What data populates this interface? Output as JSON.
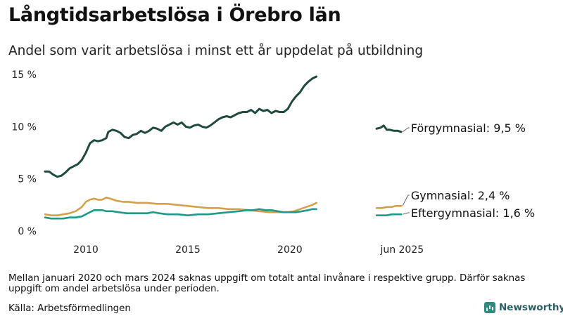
{
  "title": "Långtidsarbetslösa i Örebro län",
  "subtitle": "Andel som varit arbetslösa i minst ett år uppdelat på utbildning",
  "note": "Mellan januari 2020 och mars 2024 saknas uppgift om totalt antal invånare i respektive grupp. Därför saknas uppgift om andel arbetslösa under perioden.",
  "source": "Källa: Arbetsförmedlingen",
  "brand": "Newsworthy",
  "colors": {
    "forgymnasial": "#1f4a3f",
    "gymnasial": "#d4a04a",
    "eftergymnasial": "#1e9a88",
    "axis_text": "#222222",
    "label_line": "#666666"
  },
  "chart_data": {
    "type": "line",
    "title": "Långtidsarbetslösa i Örebro län",
    "subtitle": "Andel som varit arbetslösa i minst ett år uppdelat på utbildning",
    "xlabel": "",
    "ylabel": "",
    "ylim": [
      0,
      15
    ],
    "yticks": [
      0,
      5,
      10,
      15
    ],
    "ytick_labels": [
      "0 %",
      "5 %",
      "10 %",
      "15 %"
    ],
    "xlim": [
      2008.0,
      2025.8
    ],
    "xticks": [
      2010,
      2015,
      2020,
      2025.5
    ],
    "xtick_labels": [
      "2010",
      "2015",
      "2020",
      "jun 2025"
    ],
    "grid": false,
    "legend": "end-labels",
    "series": [
      {
        "name": "Förgymnasial",
        "end_label": "Förgymnasial: 9,5 %",
        "color_key": "forgymnasial",
        "segments": [
          [
            [
              2008.0,
              5.7
            ],
            [
              2008.2,
              5.7
            ],
            [
              2008.4,
              5.4
            ],
            [
              2008.6,
              5.2
            ],
            [
              2008.8,
              5.3
            ],
            [
              2009.0,
              5.6
            ],
            [
              2009.2,
              6.0
            ],
            [
              2009.4,
              6.2
            ],
            [
              2009.6,
              6.4
            ],
            [
              2009.8,
              6.8
            ],
            [
              2010.0,
              7.5
            ],
            [
              2010.2,
              8.4
            ],
            [
              2010.4,
              8.7
            ],
            [
              2010.6,
              8.6
            ],
            [
              2010.8,
              8.7
            ],
            [
              2011.0,
              8.9
            ],
            [
              2011.1,
              9.5
            ],
            [
              2011.3,
              9.7
            ],
            [
              2011.5,
              9.6
            ],
            [
              2011.7,
              9.4
            ],
            [
              2011.9,
              9.0
            ],
            [
              2012.1,
              8.9
            ],
            [
              2012.3,
              9.2
            ],
            [
              2012.5,
              9.3
            ],
            [
              2012.7,
              9.6
            ],
            [
              2012.9,
              9.4
            ],
            [
              2013.1,
              9.6
            ],
            [
              2013.3,
              9.9
            ],
            [
              2013.5,
              9.8
            ],
            [
              2013.7,
              9.6
            ],
            [
              2013.9,
              10.0
            ],
            [
              2014.1,
              10.2
            ],
            [
              2014.3,
              10.4
            ],
            [
              2014.5,
              10.2
            ],
            [
              2014.7,
              10.4
            ],
            [
              2014.9,
              10.0
            ],
            [
              2015.1,
              9.9
            ],
            [
              2015.3,
              10.1
            ],
            [
              2015.5,
              10.2
            ],
            [
              2015.7,
              10.0
            ],
            [
              2015.9,
              9.9
            ],
            [
              2016.1,
              10.1
            ],
            [
              2016.3,
              10.4
            ],
            [
              2016.5,
              10.7
            ],
            [
              2016.7,
              10.9
            ],
            [
              2016.9,
              11.0
            ],
            [
              2017.1,
              10.9
            ],
            [
              2017.3,
              11.1
            ],
            [
              2017.5,
              11.3
            ],
            [
              2017.7,
              11.4
            ],
            [
              2017.9,
              11.4
            ],
            [
              2018.1,
              11.6
            ],
            [
              2018.3,
              11.3
            ],
            [
              2018.5,
              11.7
            ],
            [
              2018.7,
              11.5
            ],
            [
              2018.9,
              11.6
            ],
            [
              2019.1,
              11.3
            ],
            [
              2019.3,
              11.5
            ],
            [
              2019.5,
              11.4
            ],
            [
              2019.7,
              11.4
            ],
            [
              2019.9,
              11.7
            ],
            [
              2020.1,
              12.4
            ],
            [
              2020.3,
              12.9
            ],
            [
              2020.5,
              13.3
            ],
            [
              2020.7,
              13.9
            ],
            [
              2020.9,
              14.3
            ],
            [
              2021.1,
              14.6
            ],
            [
              2021.3,
              14.8
            ]
          ],
          [
            [
              2024.25,
              9.8
            ],
            [
              2024.45,
              9.9
            ],
            [
              2024.6,
              10.1
            ],
            [
              2024.75,
              9.7
            ],
            [
              2024.9,
              9.7
            ],
            [
              2025.1,
              9.6
            ],
            [
              2025.3,
              9.6
            ],
            [
              2025.45,
              9.5
            ]
          ]
        ]
      },
      {
        "name": "Gymnasial",
        "end_label": "Gymnasial: 2,4 %",
        "color_key": "gymnasial",
        "segments": [
          [
            [
              2008.0,
              1.6
            ],
            [
              2008.3,
              1.5
            ],
            [
              2008.6,
              1.5
            ],
            [
              2008.9,
              1.6
            ],
            [
              2009.2,
              1.7
            ],
            [
              2009.5,
              1.9
            ],
            [
              2009.8,
              2.3
            ],
            [
              2010.0,
              2.8
            ],
            [
              2010.2,
              3.0
            ],
            [
              2010.4,
              3.1
            ],
            [
              2010.6,
              3.0
            ],
            [
              2010.8,
              3.0
            ],
            [
              2011.0,
              3.2
            ],
            [
              2011.2,
              3.1
            ],
            [
              2011.5,
              2.9
            ],
            [
              2011.8,
              2.8
            ],
            [
              2012.1,
              2.8
            ],
            [
              2012.5,
              2.7
            ],
            [
              2013.0,
              2.7
            ],
            [
              2013.5,
              2.6
            ],
            [
              2014.0,
              2.6
            ],
            [
              2014.5,
              2.5
            ],
            [
              2015.0,
              2.4
            ],
            [
              2015.5,
              2.3
            ],
            [
              2016.0,
              2.2
            ],
            [
              2016.5,
              2.2
            ],
            [
              2017.0,
              2.1
            ],
            [
              2017.5,
              2.1
            ],
            [
              2018.0,
              2.0
            ],
            [
              2018.5,
              1.9
            ],
            [
              2019.0,
              1.8
            ],
            [
              2019.5,
              1.8
            ],
            [
              2019.9,
              1.8
            ],
            [
              2020.2,
              1.9
            ],
            [
              2020.5,
              2.1
            ],
            [
              2020.8,
              2.3
            ],
            [
              2021.1,
              2.5
            ],
            [
              2021.3,
              2.7
            ]
          ],
          [
            [
              2024.25,
              2.2
            ],
            [
              2024.5,
              2.2
            ],
            [
              2024.75,
              2.3
            ],
            [
              2025.0,
              2.3
            ],
            [
              2025.2,
              2.4
            ],
            [
              2025.45,
              2.4
            ]
          ]
        ]
      },
      {
        "name": "Eftergymnasial",
        "end_label": "Eftergymnasial: 1,6 %",
        "color_key": "eftergymnasial",
        "segments": [
          [
            [
              2008.0,
              1.3
            ],
            [
              2008.3,
              1.2
            ],
            [
              2008.6,
              1.2
            ],
            [
              2008.9,
              1.2
            ],
            [
              2009.2,
              1.3
            ],
            [
              2009.5,
              1.3
            ],
            [
              2009.8,
              1.4
            ],
            [
              2010.0,
              1.6
            ],
            [
              2010.2,
              1.8
            ],
            [
              2010.4,
              2.0
            ],
            [
              2010.6,
              2.0
            ],
            [
              2010.8,
              2.0
            ],
            [
              2011.0,
              1.9
            ],
            [
              2011.3,
              1.9
            ],
            [
              2011.6,
              1.8
            ],
            [
              2012.0,
              1.7
            ],
            [
              2012.5,
              1.7
            ],
            [
              2013.0,
              1.7
            ],
            [
              2013.3,
              1.8
            ],
            [
              2013.6,
              1.7
            ],
            [
              2014.0,
              1.6
            ],
            [
              2014.5,
              1.6
            ],
            [
              2015.0,
              1.5
            ],
            [
              2015.5,
              1.6
            ],
            [
              2016.0,
              1.6
            ],
            [
              2016.5,
              1.7
            ],
            [
              2017.0,
              1.8
            ],
            [
              2017.5,
              1.9
            ],
            [
              2017.9,
              2.0
            ],
            [
              2018.2,
              2.0
            ],
            [
              2018.5,
              2.1
            ],
            [
              2018.8,
              2.0
            ],
            [
              2019.1,
              2.0
            ],
            [
              2019.4,
              1.9
            ],
            [
              2019.7,
              1.8
            ],
            [
              2020.0,
              1.8
            ],
            [
              2020.3,
              1.8
            ],
            [
              2020.6,
              1.9
            ],
            [
              2020.9,
              2.0
            ],
            [
              2021.1,
              2.1
            ],
            [
              2021.3,
              2.1
            ]
          ],
          [
            [
              2024.25,
              1.5
            ],
            [
              2024.5,
              1.5
            ],
            [
              2024.75,
              1.5
            ],
            [
              2025.0,
              1.6
            ],
            [
              2025.2,
              1.6
            ],
            [
              2025.45,
              1.6
            ]
          ]
        ]
      }
    ]
  }
}
